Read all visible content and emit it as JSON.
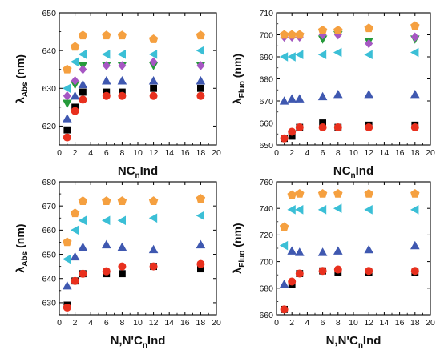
{
  "chart_data": [
    {
      "type": "scatter",
      "xlabel_main": "NC",
      "xlabel_sub": "n",
      "xlabel_tail": "Ind",
      "ylabel_lambda": "λ",
      "ylabel_sub": "Abs",
      "ylabel_unit": "(nm)",
      "xlim": [
        0,
        20
      ],
      "ylim": [
        615,
        650
      ],
      "xticks": [
        "0",
        "2",
        "4",
        "6",
        "8",
        "10",
        "12",
        "14",
        "16",
        "18",
        "20"
      ],
      "yticks": [
        "620",
        "630",
        "640",
        "650"
      ],
      "series": [
        {
          "marker": "square",
          "color": "#000000",
          "x": [
            1,
            2,
            3,
            6,
            8,
            12,
            18
          ],
          "y": [
            619,
            625,
            629,
            629,
            629,
            630,
            630
          ]
        },
        {
          "marker": "circle",
          "color": "#e8301e",
          "x": [
            1,
            2,
            3,
            6,
            8,
            12,
            18
          ],
          "y": [
            617,
            624,
            627,
            628,
            628,
            628,
            628
          ]
        },
        {
          "marker": "triangle",
          "color": "#3f58b0",
          "x": [
            1,
            2,
            3,
            6,
            8,
            12,
            18
          ],
          "y": [
            622,
            628,
            631,
            632,
            632,
            632,
            632
          ]
        },
        {
          "marker": "tri-down",
          "color": "#259a3a",
          "x": [
            1,
            2,
            3,
            6,
            8,
            12,
            18
          ],
          "y": [
            626,
            631,
            636,
            636,
            636,
            636,
            636
          ]
        },
        {
          "marker": "diamond",
          "color": "#a657c3",
          "x": [
            1,
            2,
            3,
            6,
            8,
            12,
            18
          ],
          "y": [
            628,
            632,
            635,
            636,
            636,
            637,
            636
          ]
        },
        {
          "marker": "tri-left",
          "color": "#3bbfd6",
          "x": [
            1,
            2,
            3,
            6,
            8,
            12,
            18
          ],
          "y": [
            630,
            637,
            639,
            639,
            639,
            639,
            640
          ]
        },
        {
          "marker": "pentagon",
          "color": "#f5a040",
          "x": [
            1,
            2,
            3,
            6,
            8,
            12,
            18
          ],
          "y": [
            635,
            641,
            644,
            644,
            644,
            643,
            644
          ]
        }
      ]
    },
    {
      "type": "scatter",
      "xlabel_main": "NC",
      "xlabel_sub": "n",
      "xlabel_tail": "Ind",
      "ylabel_lambda": "λ",
      "ylabel_sub": "Fluo",
      "ylabel_unit": "(nm)",
      "xlim": [
        0,
        20
      ],
      "ylim": [
        650,
        710
      ],
      "xticks": [
        "0",
        "2",
        "4",
        "6",
        "8",
        "10",
        "12",
        "14",
        "16",
        "18",
        "20"
      ],
      "yticks": [
        "650",
        "660",
        "670",
        "680",
        "690",
        "700",
        "710"
      ],
      "series": [
        {
          "marker": "square",
          "color": "#000000",
          "x": [
            1,
            2,
            3,
            6,
            8,
            12,
            18
          ],
          "y": [
            653,
            654,
            658,
            660,
            658,
            659,
            659
          ]
        },
        {
          "marker": "circle",
          "color": "#e8301e",
          "x": [
            1,
            2,
            3,
            6,
            8,
            12,
            18
          ],
          "y": [
            653,
            656,
            658,
            658,
            658,
            658,
            658
          ]
        },
        {
          "marker": "triangle",
          "color": "#3f58b0",
          "x": [
            1,
            2,
            3,
            6,
            8,
            12,
            18
          ],
          "y": [
            670,
            671,
            671,
            672,
            673,
            673,
            673
          ]
        },
        {
          "marker": "tri-down",
          "color": "#259a3a",
          "x": [
            1,
            2,
            3,
            6,
            8,
            12,
            18
          ],
          "y": [
            699,
            699,
            699,
            698,
            700,
            697,
            698
          ]
        },
        {
          "marker": "diamond",
          "color": "#a657c3",
          "x": [
            1,
            2,
            3,
            6,
            8,
            12,
            18
          ],
          "y": [
            699,
            699,
            699,
            700,
            700,
            696,
            699
          ]
        },
        {
          "marker": "tri-left",
          "color": "#3bbfd6",
          "x": [
            1,
            2,
            3,
            6,
            8,
            12,
            18
          ],
          "y": [
            690,
            690,
            691,
            691,
            692,
            691,
            692
          ]
        },
        {
          "marker": "pentagon",
          "color": "#f5a040",
          "x": [
            1,
            2,
            3,
            6,
            8,
            12,
            18
          ],
          "y": [
            700,
            700,
            700,
            702,
            702,
            703,
            704
          ]
        }
      ]
    },
    {
      "type": "scatter",
      "xlabel_main": "N,N'C",
      "xlabel_sub": "n",
      "xlabel_tail": "Ind",
      "ylabel_lambda": "λ",
      "ylabel_sub": "Abs",
      "ylabel_unit": "(nm)",
      "xlim": [
        0,
        20
      ],
      "ylim": [
        625,
        680
      ],
      "xticks": [
        "0",
        "2",
        "4",
        "6",
        "8",
        "10",
        "12",
        "14",
        "16",
        "18",
        "20"
      ],
      "yticks": [
        "630",
        "640",
        "650",
        "660",
        "670",
        "680"
      ],
      "series": [
        {
          "marker": "square",
          "color": "#000000",
          "x": [
            1,
            2,
            3,
            6,
            8,
            12,
            18
          ],
          "y": [
            629,
            639,
            642,
            642,
            642,
            645,
            644
          ]
        },
        {
          "marker": "circle",
          "color": "#e8301e",
          "x": [
            1,
            2,
            3,
            6,
            8,
            12,
            18
          ],
          "y": [
            628,
            639,
            642,
            643,
            645,
            645,
            646
          ]
        },
        {
          "marker": "triangle",
          "color": "#3f58b0",
          "x": [
            1,
            2,
            3,
            6,
            8,
            12,
            18
          ],
          "y": [
            637,
            649,
            653,
            654,
            653,
            652,
            654
          ]
        },
        {
          "marker": "tri-left",
          "color": "#3bbfd6",
          "x": [
            1,
            2,
            3,
            6,
            8,
            12,
            18
          ],
          "y": [
            648,
            660,
            664,
            664,
            664,
            665,
            666
          ]
        },
        {
          "marker": "pentagon",
          "color": "#f5a040",
          "x": [
            1,
            2,
            3,
            6,
            8,
            12,
            18
          ],
          "y": [
            655,
            667,
            672,
            672,
            672,
            672,
            673
          ]
        }
      ]
    },
    {
      "type": "scatter",
      "xlabel_main": "N,N'C",
      "xlabel_sub": "n",
      "xlabel_tail": "Ind",
      "ylabel_lambda": "λ",
      "ylabel_sub": "Fluo",
      "ylabel_unit": "(nm)",
      "xlim": [
        0,
        20
      ],
      "ylim": [
        660,
        760
      ],
      "xticks": [
        "0",
        "2",
        "4",
        "6",
        "8",
        "10",
        "12",
        "14",
        "16",
        "18",
        "20"
      ],
      "yticks": [
        "660",
        "680",
        "700",
        "720",
        "740",
        "760"
      ],
      "series": [
        {
          "marker": "square",
          "color": "#000000",
          "x": [
            1,
            2,
            3,
            6,
            8,
            12,
            18
          ],
          "y": [
            664,
            683,
            691,
            693,
            692,
            692,
            692
          ]
        },
        {
          "marker": "circle",
          "color": "#e8301e",
          "x": [
            1,
            2,
            3,
            6,
            8,
            12,
            18
          ],
          "y": [
            664,
            685,
            691,
            693,
            694,
            693,
            693
          ]
        },
        {
          "marker": "triangle",
          "color": "#3f58b0",
          "x": [
            1,
            2,
            3,
            6,
            8,
            12,
            18
          ],
          "y": [
            683,
            708,
            707,
            707,
            708,
            709,
            712
          ]
        },
        {
          "marker": "tri-left",
          "color": "#3bbfd6",
          "x": [
            1,
            2,
            3,
            6,
            8,
            12,
            18
          ],
          "y": [
            712,
            739,
            739,
            739,
            740,
            739,
            739
          ]
        },
        {
          "marker": "pentagon",
          "color": "#f5a040",
          "x": [
            1,
            2,
            3,
            6,
            8,
            12,
            18
          ],
          "y": [
            726,
            750,
            751,
            751,
            751,
            751,
            751
          ]
        }
      ]
    }
  ]
}
